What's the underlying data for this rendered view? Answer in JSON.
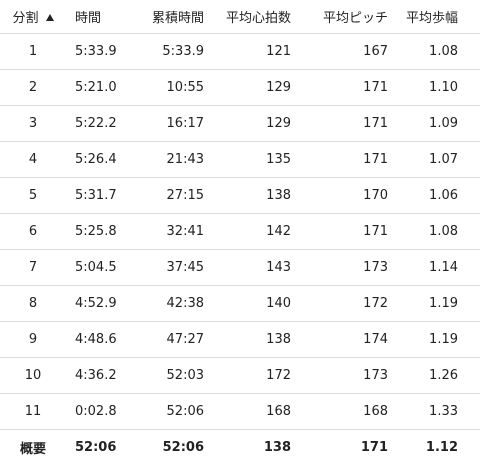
{
  "table": {
    "headers": {
      "split": "分割",
      "time": "時間",
      "cumulative_time": "累積時間",
      "avg_hr": "平均心拍数",
      "avg_cadence": "平均ピッチ",
      "avg_stride": "平均歩幅"
    },
    "sort": {
      "column": "split",
      "direction": "ascending",
      "icon": "sort-ascending-icon"
    },
    "rows": [
      {
        "split": "1",
        "time": "5:33.9",
        "cumulative_time": "5:33.9",
        "avg_hr": "121",
        "avg_cadence": "167",
        "avg_stride": "1.08"
      },
      {
        "split": "2",
        "time": "5:21.0",
        "cumulative_time": "10:55",
        "avg_hr": "129",
        "avg_cadence": "171",
        "avg_stride": "1.10"
      },
      {
        "split": "3",
        "time": "5:22.2",
        "cumulative_time": "16:17",
        "avg_hr": "129",
        "avg_cadence": "171",
        "avg_stride": "1.09"
      },
      {
        "split": "4",
        "time": "5:26.4",
        "cumulative_time": "21:43",
        "avg_hr": "135",
        "avg_cadence": "171",
        "avg_stride": "1.07"
      },
      {
        "split": "5",
        "time": "5:31.7",
        "cumulative_time": "27:15",
        "avg_hr": "138",
        "avg_cadence": "170",
        "avg_stride": "1.06"
      },
      {
        "split": "6",
        "time": "5:25.8",
        "cumulative_time": "32:41",
        "avg_hr": "142",
        "avg_cadence": "171",
        "avg_stride": "1.08"
      },
      {
        "split": "7",
        "time": "5:04.5",
        "cumulative_time": "37:45",
        "avg_hr": "143",
        "avg_cadence": "173",
        "avg_stride": "1.14"
      },
      {
        "split": "8",
        "time": "4:52.9",
        "cumulative_time": "42:38",
        "avg_hr": "140",
        "avg_cadence": "172",
        "avg_stride": "1.19"
      },
      {
        "split": "9",
        "time": "4:48.6",
        "cumulative_time": "47:27",
        "avg_hr": "138",
        "avg_cadence": "174",
        "avg_stride": "1.19"
      },
      {
        "split": "10",
        "time": "4:36.2",
        "cumulative_time": "52:03",
        "avg_hr": "172",
        "avg_cadence": "173",
        "avg_stride": "1.26"
      },
      {
        "split": "11",
        "time": "0:02.8",
        "cumulative_time": "52:06",
        "avg_hr": "168",
        "avg_cadence": "168",
        "avg_stride": "1.33"
      }
    ],
    "summary": {
      "label": "概要",
      "time": "52:06",
      "cumulative_time": "52:06",
      "avg_hr": "138",
      "avg_cadence": "171",
      "avg_stride": "1.12"
    }
  }
}
